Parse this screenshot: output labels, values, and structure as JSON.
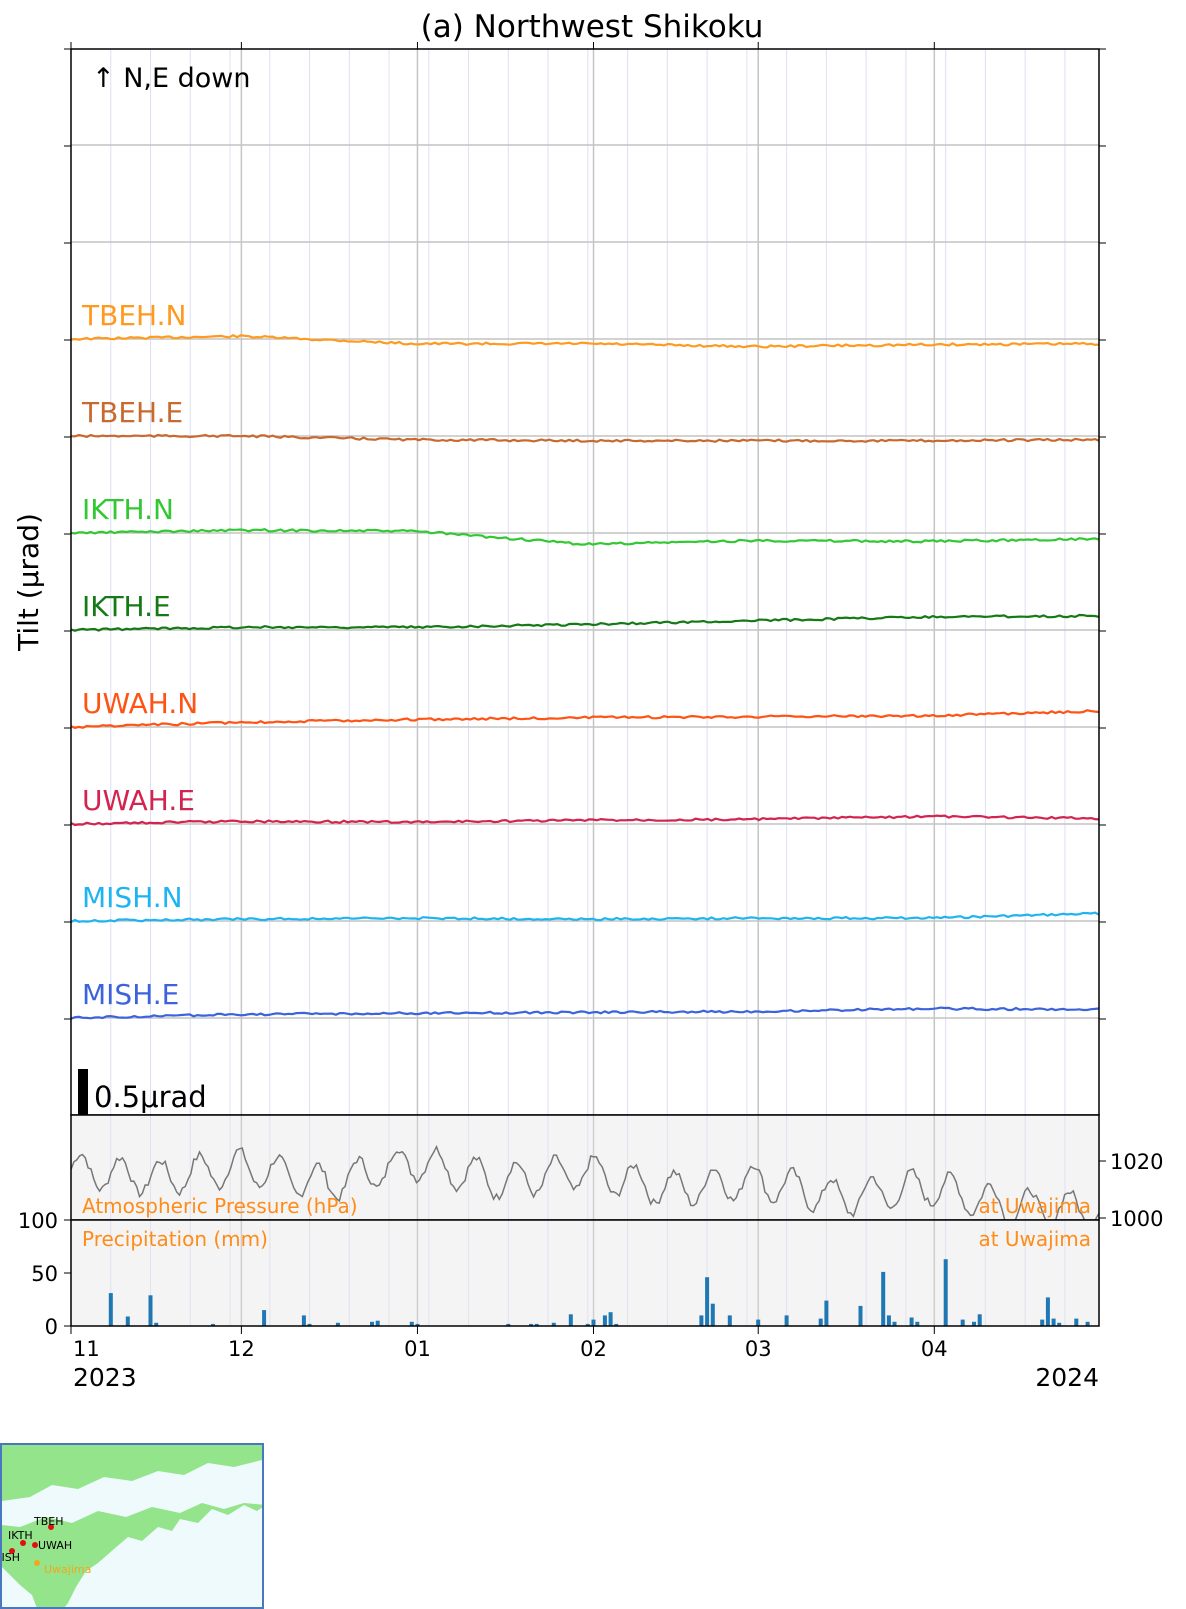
{
  "chart_data": [
    {
      "type": "line",
      "title": "(a) Northwest Shikoku",
      "ylabel": "Tilt (μrad)",
      "annotation": "↑ N,E down",
      "scale_bar": {
        "label": "0.5μrad",
        "value": 0.5
      },
      "x": [
        "2023-11-01",
        "2023-12-01",
        "2024-01-01",
        "2024-02-01",
        "2024-03-01",
        "2024-04-01",
        "2024-04-30"
      ],
      "x_ticks": [
        "11",
        "12",
        "01",
        "02",
        "03",
        "04"
      ],
      "x_year_labels": [
        "2023",
        "2024"
      ],
      "grid": true,
      "series": [
        {
          "name": "TBEH.N",
          "color": "#ff9a1f",
          "values": [
            0.0,
            0.03,
            -0.05,
            -0.05,
            -0.08,
            -0.06,
            -0.05
          ]
        },
        {
          "name": "TBEH.E",
          "color": "#c8692d",
          "values": [
            0.0,
            0.0,
            -0.04,
            -0.05,
            -0.05,
            -0.05,
            -0.04
          ]
        },
        {
          "name": "IKTH.N",
          "color": "#32c832",
          "values": [
            0.0,
            0.03,
            0.02,
            -0.12,
            -0.08,
            -0.09,
            -0.06
          ]
        },
        {
          "name": "IKTH.E",
          "color": "#157a15",
          "values": [
            0.0,
            0.03,
            0.03,
            0.06,
            0.1,
            0.14,
            0.15
          ]
        },
        {
          "name": "UWAH.N",
          "color": "#ff5314",
          "values": [
            0.0,
            0.05,
            0.08,
            0.1,
            0.11,
            0.12,
            0.17
          ]
        },
        {
          "name": "UWAH.E",
          "color": "#d3234f",
          "values": [
            0.0,
            0.03,
            0.02,
            0.04,
            0.05,
            0.08,
            0.06
          ]
        },
        {
          "name": "MISH.N",
          "color": "#1eb4f0",
          "values": [
            0.0,
            0.02,
            0.03,
            0.02,
            0.03,
            0.03,
            0.08
          ]
        },
        {
          "name": "MISH.E",
          "color": "#3c63dc",
          "values": [
            0.0,
            0.04,
            0.05,
            0.06,
            0.07,
            0.1,
            0.09
          ]
        }
      ]
    },
    {
      "type": "line",
      "series_label": "Atmospheric Pressure (hPa)",
      "location": "at Uwajima",
      "color": "#777777",
      "y_ticks": [
        "1020",
        "1000"
      ],
      "ylim": [
        996,
        1028
      ],
      "x": [
        "2023-11-01",
        "2023-11-15",
        "2023-12-01",
        "2023-12-15",
        "2024-01-01",
        "2024-01-15",
        "2024-02-01",
        "2024-02-15",
        "2024-03-01",
        "2024-03-15",
        "2024-04-01",
        "2024-04-15",
        "2024-04-30"
      ],
      "values": [
        1017,
        1014,
        1018,
        1012,
        1020,
        1013,
        1016,
        1010,
        1013,
        1007,
        1011,
        1004,
        1003
      ]
    },
    {
      "type": "bar",
      "series_label": "Precipitation (mm)",
      "location": "at Uwajima",
      "color": "#1f77b4",
      "y_ticks": [
        "0",
        "50",
        "100"
      ],
      "ylim": [
        0,
        100
      ],
      "x": [
        "2023-11-08",
        "2023-11-11",
        "2023-11-15",
        "2023-11-16",
        "2023-11-26",
        "2023-12-05",
        "2023-12-12",
        "2023-12-13",
        "2023-12-18",
        "2023-12-24",
        "2023-12-25",
        "2023-12-31",
        "2024-01-01",
        "2024-01-17",
        "2024-01-21",
        "2024-01-22",
        "2024-01-25",
        "2024-01-28",
        "2024-01-31",
        "2024-02-01",
        "2024-02-03",
        "2024-02-04",
        "2024-02-05",
        "2024-02-20",
        "2024-02-21",
        "2024-02-22",
        "2024-02-25",
        "2024-03-01",
        "2024-03-06",
        "2024-03-12",
        "2024-03-13",
        "2024-03-19",
        "2024-03-23",
        "2024-03-24",
        "2024-03-25",
        "2024-03-28",
        "2024-03-29",
        "2024-04-03",
        "2024-04-06",
        "2024-04-08",
        "2024-04-09",
        "2024-04-20",
        "2024-04-21",
        "2024-04-22",
        "2024-04-23",
        "2024-04-26",
        "2024-04-28"
      ],
      "values": [
        31,
        9,
        29,
        3,
        2,
        15,
        10,
        2,
        3,
        4,
        5,
        4,
        2,
        2,
        2,
        2,
        3,
        11,
        2,
        6,
        10,
        13,
        2,
        10,
        46,
        21,
        10,
        6,
        10,
        7,
        24,
        19,
        51,
        10,
        4,
        8,
        4,
        63,
        6,
        4,
        11,
        6,
        27,
        7,
        3,
        7,
        4
      ]
    }
  ],
  "map": {
    "stations": [
      "TBEH",
      "IKTH",
      "UWAH",
      "MISH"
    ],
    "place": "Uwajima"
  }
}
